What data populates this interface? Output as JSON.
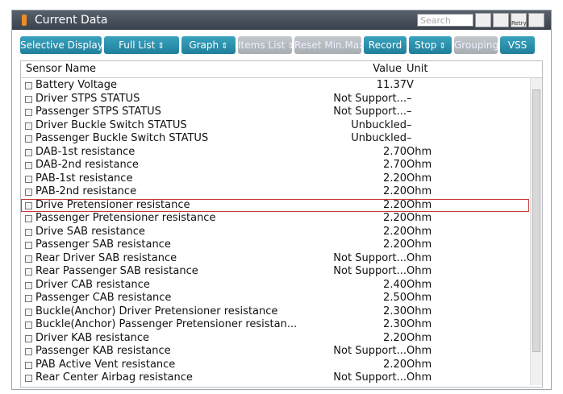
{
  "header": {
    "title": "Current Data",
    "search_placeholder": "Search",
    "retry_label": "Retry"
  },
  "toolbar": {
    "buttons": [
      {
        "label": "Selective Display",
        "dropdown": true,
        "enabled": true
      },
      {
        "label": "Full List",
        "dropdown": true,
        "enabled": true
      },
      {
        "label": "Graph",
        "dropdown": true,
        "enabled": true
      },
      {
        "label": "Items List",
        "dropdown": true,
        "enabled": false
      },
      {
        "label": "Reset Min.Max",
        "dropdown": false,
        "enabled": false
      },
      {
        "label": "Record",
        "dropdown": false,
        "enabled": true
      },
      {
        "label": "Stop",
        "dropdown": true,
        "enabled": true
      },
      {
        "label": "Grouping",
        "dropdown": false,
        "enabled": false
      },
      {
        "label": "VSS",
        "dropdown": false,
        "enabled": true
      }
    ]
  },
  "table": {
    "columns": [
      "Sensor Name",
      "Value",
      "Unit"
    ],
    "rows": [
      {
        "name": "Battery Voltage",
        "value": "11.37",
        "unit": "V"
      },
      {
        "name": "Driver STPS STATUS",
        "value": "Not Support...",
        "unit": "–"
      },
      {
        "name": "Passenger STPS STATUS",
        "value": "Not Support...",
        "unit": "–"
      },
      {
        "name": "Driver Buckle Switch STATUS",
        "value": "Unbuckled",
        "unit": "–"
      },
      {
        "name": "Passenger Buckle Switch STATUS",
        "value": "Unbuckled",
        "unit": "–"
      },
      {
        "name": "DAB-1st resistance",
        "value": "2.70",
        "unit": "Ohm"
      },
      {
        "name": "DAB-2nd resistance",
        "value": "2.70",
        "unit": "Ohm"
      },
      {
        "name": "PAB-1st resistance",
        "value": "2.20",
        "unit": "Ohm"
      },
      {
        "name": "PAB-2nd resistance",
        "value": "2.20",
        "unit": "Ohm"
      },
      {
        "name": "Drive Pretensioner resistance",
        "value": "2.20",
        "unit": "Ohm",
        "selected": true
      },
      {
        "name": "Passenger Pretensioner resistance",
        "value": "2.20",
        "unit": "Ohm"
      },
      {
        "name": "Drive SAB resistance",
        "value": "2.20",
        "unit": "Ohm"
      },
      {
        "name": "Passenger SAB resistance",
        "value": "2.20",
        "unit": "Ohm"
      },
      {
        "name": "Rear Driver SAB resistance",
        "value": "Not Support...",
        "unit": "Ohm"
      },
      {
        "name": "Rear Passenger SAB resistance",
        "value": "Not Support...",
        "unit": "Ohm"
      },
      {
        "name": "Driver CAB resistance",
        "value": "2.40",
        "unit": "Ohm"
      },
      {
        "name": "Passenger CAB resistance",
        "value": "2.50",
        "unit": "Ohm"
      },
      {
        "name": "Buckle(Anchor) Driver Pretensioner resistance",
        "value": "2.30",
        "unit": "Ohm"
      },
      {
        "name": "Buckle(Anchor) Passenger Pretensioner resistan...",
        "value": "2.30",
        "unit": "Ohm"
      },
      {
        "name": "Driver KAB resistance",
        "value": "2.20",
        "unit": "Ohm"
      },
      {
        "name": "Passenger KAB resistance",
        "value": "Not Support...",
        "unit": "Ohm"
      },
      {
        "name": "PAB Active Vent resistance",
        "value": "2.20",
        "unit": "Ohm"
      },
      {
        "name": "Rear Center Airbag resistance",
        "value": "Not Support...",
        "unit": "Ohm"
      }
    ]
  }
}
